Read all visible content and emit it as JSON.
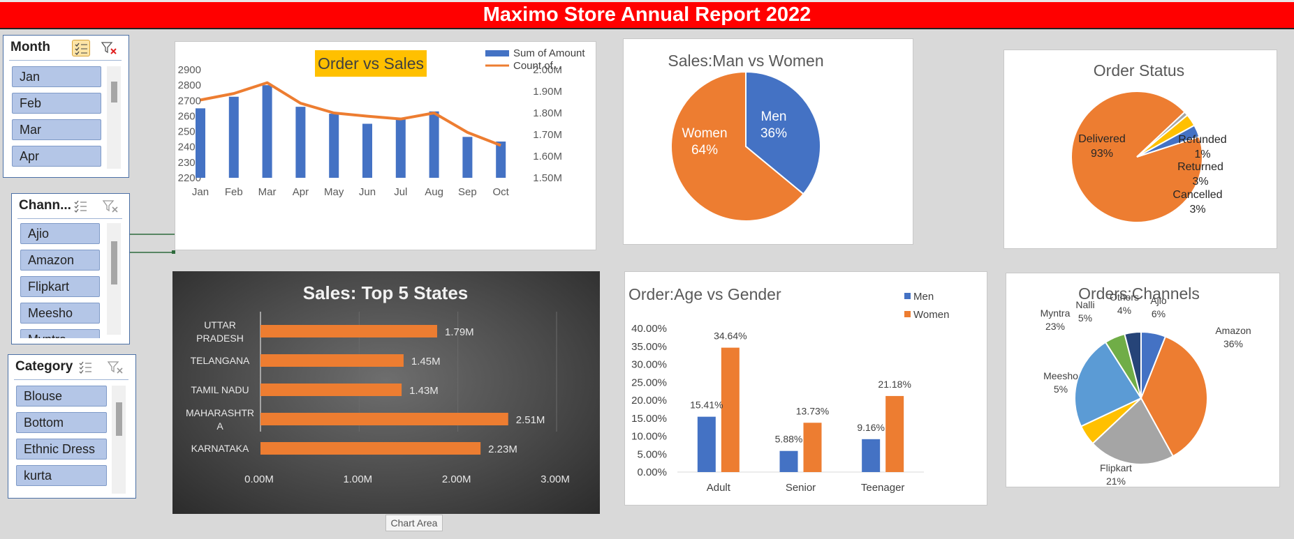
{
  "report": {
    "title": "Maximo Store Annual Report 2022"
  },
  "slicers": {
    "month": {
      "title": "Month",
      "items": [
        "Jan",
        "Feb",
        "Mar",
        "Apr"
      ]
    },
    "channel": {
      "title": "Chann...",
      "items": [
        "Ajio",
        "Amazon",
        "Flipkart",
        "Meesho",
        "Myntra"
      ]
    },
    "category": {
      "title": "Category",
      "items": [
        "Blouse",
        "Bottom",
        "Ethnic Dress",
        "kurta"
      ]
    }
  },
  "tooltip": {
    "text": "Chart Area"
  },
  "colors": {
    "banner": "#ff0000",
    "blue": "#4472c4",
    "orange": "#ed7d31",
    "gray": "#a5a5a5",
    "yellow": "#ffc000",
    "lightblue": "#5b9bd5",
    "green": "#70ad47",
    "navy": "#264478",
    "slicer_item": "#b4c6e7"
  },
  "chart_data": [
    {
      "id": "order-vs-sales",
      "type": "bar",
      "title": "Order vs Sales",
      "categories": [
        "Jan",
        "Feb",
        "Mar",
        "Apr",
        "May",
        "Jun",
        "Jul",
        "Aug",
        "Sep",
        "Oct"
      ],
      "series": [
        {
          "name": "Sum of Amount",
          "type": "bar",
          "axis": "left",
          "values": [
            2650,
            2725,
            2800,
            2660,
            2615,
            2550,
            2580,
            2630,
            2465,
            2435
          ]
        },
        {
          "name": "Count of...",
          "type": "line",
          "axis": "right",
          "values": [
            1860000,
            1890000,
            1940000,
            1845000,
            1800000,
            1785000,
            1772000,
            1800000,
            1710000,
            1650000
          ]
        }
      ],
      "y_left": {
        "min": 2200,
        "max": 2900,
        "ticks": [
          "2900",
          "2800",
          "2700",
          "2600",
          "2500",
          "2400",
          "2300",
          "2200"
        ]
      },
      "y_right": {
        "min": 1500000,
        "max": 2000000,
        "ticks": [
          "2.00M",
          "1.90M",
          "1.80M",
          "1.70M",
          "1.60M",
          "1.50M"
        ]
      },
      "legend": "top-right"
    },
    {
      "id": "sales-gender",
      "type": "pie",
      "title": "Sales:Man vs Women",
      "slices": [
        {
          "label": "Men",
          "value": 36,
          "text": "36%"
        },
        {
          "label": "Women",
          "value": 64,
          "text": "64%"
        }
      ]
    },
    {
      "id": "order-status",
      "type": "pie",
      "title": "Order Status",
      "slices": [
        {
          "label": "Delivered",
          "value": 93,
          "text": "93%"
        },
        {
          "label": "Refunded",
          "value": 1,
          "text": "1%"
        },
        {
          "label": "Returned",
          "value": 3,
          "text": "3%"
        },
        {
          "label": "Cancelled",
          "value": 3,
          "text": "3%"
        }
      ]
    },
    {
      "id": "top-states",
      "type": "bar",
      "orientation": "horizontal",
      "title": "Sales: Top 5 States",
      "categories": [
        "UTTAR PRADESH",
        "TELANGANA",
        "TAMIL NADU",
        "MAHARASHTRA",
        "KARNATAKA"
      ],
      "category_lines": [
        [
          "UTTAR",
          "PRADESH"
        ],
        [
          "TELANGANA"
        ],
        [
          "TAMIL NADU"
        ],
        [
          "MAHARASHTR",
          "A"
        ],
        [
          "KARNATAKA"
        ]
      ],
      "values": [
        1790000,
        1450000,
        1430000,
        2510000,
        2230000
      ],
      "value_labels": [
        "1.79M",
        "1.45M",
        "1.43M",
        "2.51M",
        "2.23M"
      ],
      "x_ticks": [
        "0.00M",
        "1.00M",
        "2.00M",
        "3.00M"
      ],
      "xlim": [
        0,
        3000000
      ]
    },
    {
      "id": "age-gender",
      "type": "bar",
      "title": "Order:Age vs Gender",
      "categories": [
        "Adult",
        "Senior",
        "Teenager"
      ],
      "series": [
        {
          "name": "Men",
          "values": [
            15.41,
            5.88,
            9.16
          ],
          "labels": [
            "15.41%",
            "5.88%",
            "9.16%"
          ]
        },
        {
          "name": "Women",
          "values": [
            34.64,
            13.73,
            21.18
          ],
          "labels": [
            "34.64%",
            "13.73%",
            "21.18%"
          ]
        }
      ],
      "y_ticks": [
        "40.00%",
        "35.00%",
        "30.00%",
        "25.00%",
        "20.00%",
        "15.00%",
        "10.00%",
        "5.00%",
        "0.00%"
      ],
      "ylim": [
        0,
        40
      ],
      "legend": "top-right"
    },
    {
      "id": "channels",
      "type": "pie",
      "title": "Orders:Channels",
      "slices": [
        {
          "label": "Ajio",
          "value": 6,
          "text": "6%"
        },
        {
          "label": "Amazon",
          "value": 36,
          "text": "36%"
        },
        {
          "label": "Flipkart",
          "value": 21,
          "text": "21%"
        },
        {
          "label": "Meesho",
          "value": 5,
          "text": "5%"
        },
        {
          "label": "Myntra",
          "value": 23,
          "text": "23%"
        },
        {
          "label": "Nalli",
          "value": 5,
          "text": "5%"
        },
        {
          "label": "Others",
          "value": 4,
          "text": "4%"
        }
      ]
    }
  ]
}
